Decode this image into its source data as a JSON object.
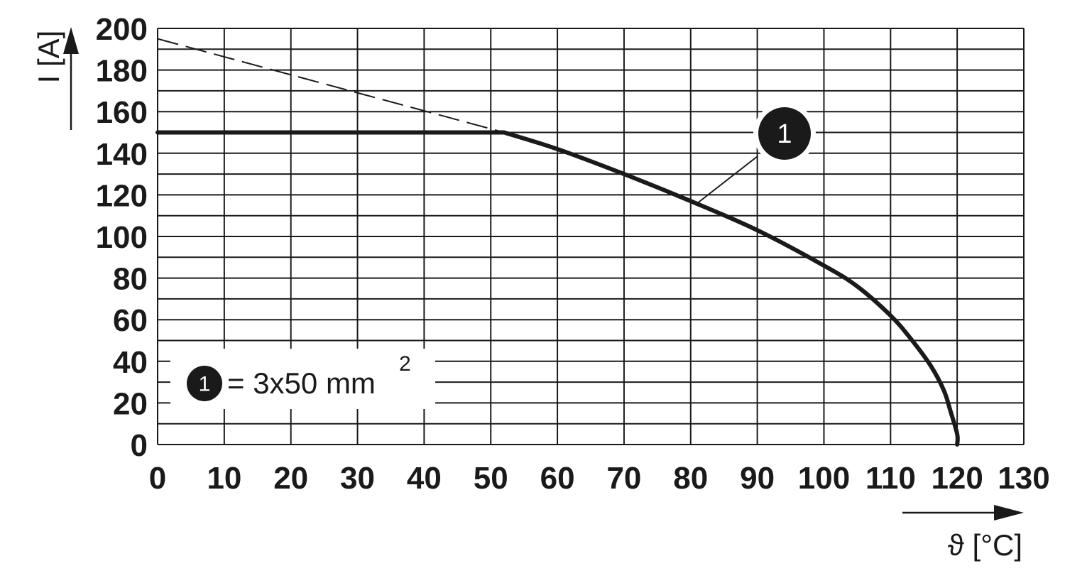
{
  "chart_data": {
    "type": "line",
    "xlabel": "ϑ [°C]",
    "ylabel": "I [A]",
    "xlim": [
      0,
      130
    ],
    "ylim": [
      0,
      200
    ],
    "x_ticks": [
      0,
      10,
      20,
      30,
      40,
      50,
      60,
      70,
      80,
      90,
      100,
      110,
      120,
      130
    ],
    "y_ticks": [
      0,
      20,
      40,
      60,
      80,
      100,
      120,
      140,
      160,
      180,
      200
    ],
    "grid": true,
    "series": [
      {
        "marker": "1",
        "style": "solid",
        "x": [
          0,
          52,
          60,
          70,
          80,
          90,
          100,
          105,
          110,
          113,
          116,
          118,
          119,
          120,
          120
        ],
        "y": [
          150,
          150,
          142,
          130,
          117,
          103,
          86,
          76,
          62,
          51,
          38,
          26,
          16,
          5,
          0
        ]
      },
      {
        "style": "dashed",
        "x": [
          0,
          52
        ],
        "y": [
          195,
          150
        ]
      }
    ],
    "callout": {
      "label": "1",
      "x": 81,
      "y": 116
    },
    "legend": {
      "position": "bottom-left",
      "marker": "1",
      "text": "= 3x50 mm",
      "superscript": "2"
    }
  }
}
